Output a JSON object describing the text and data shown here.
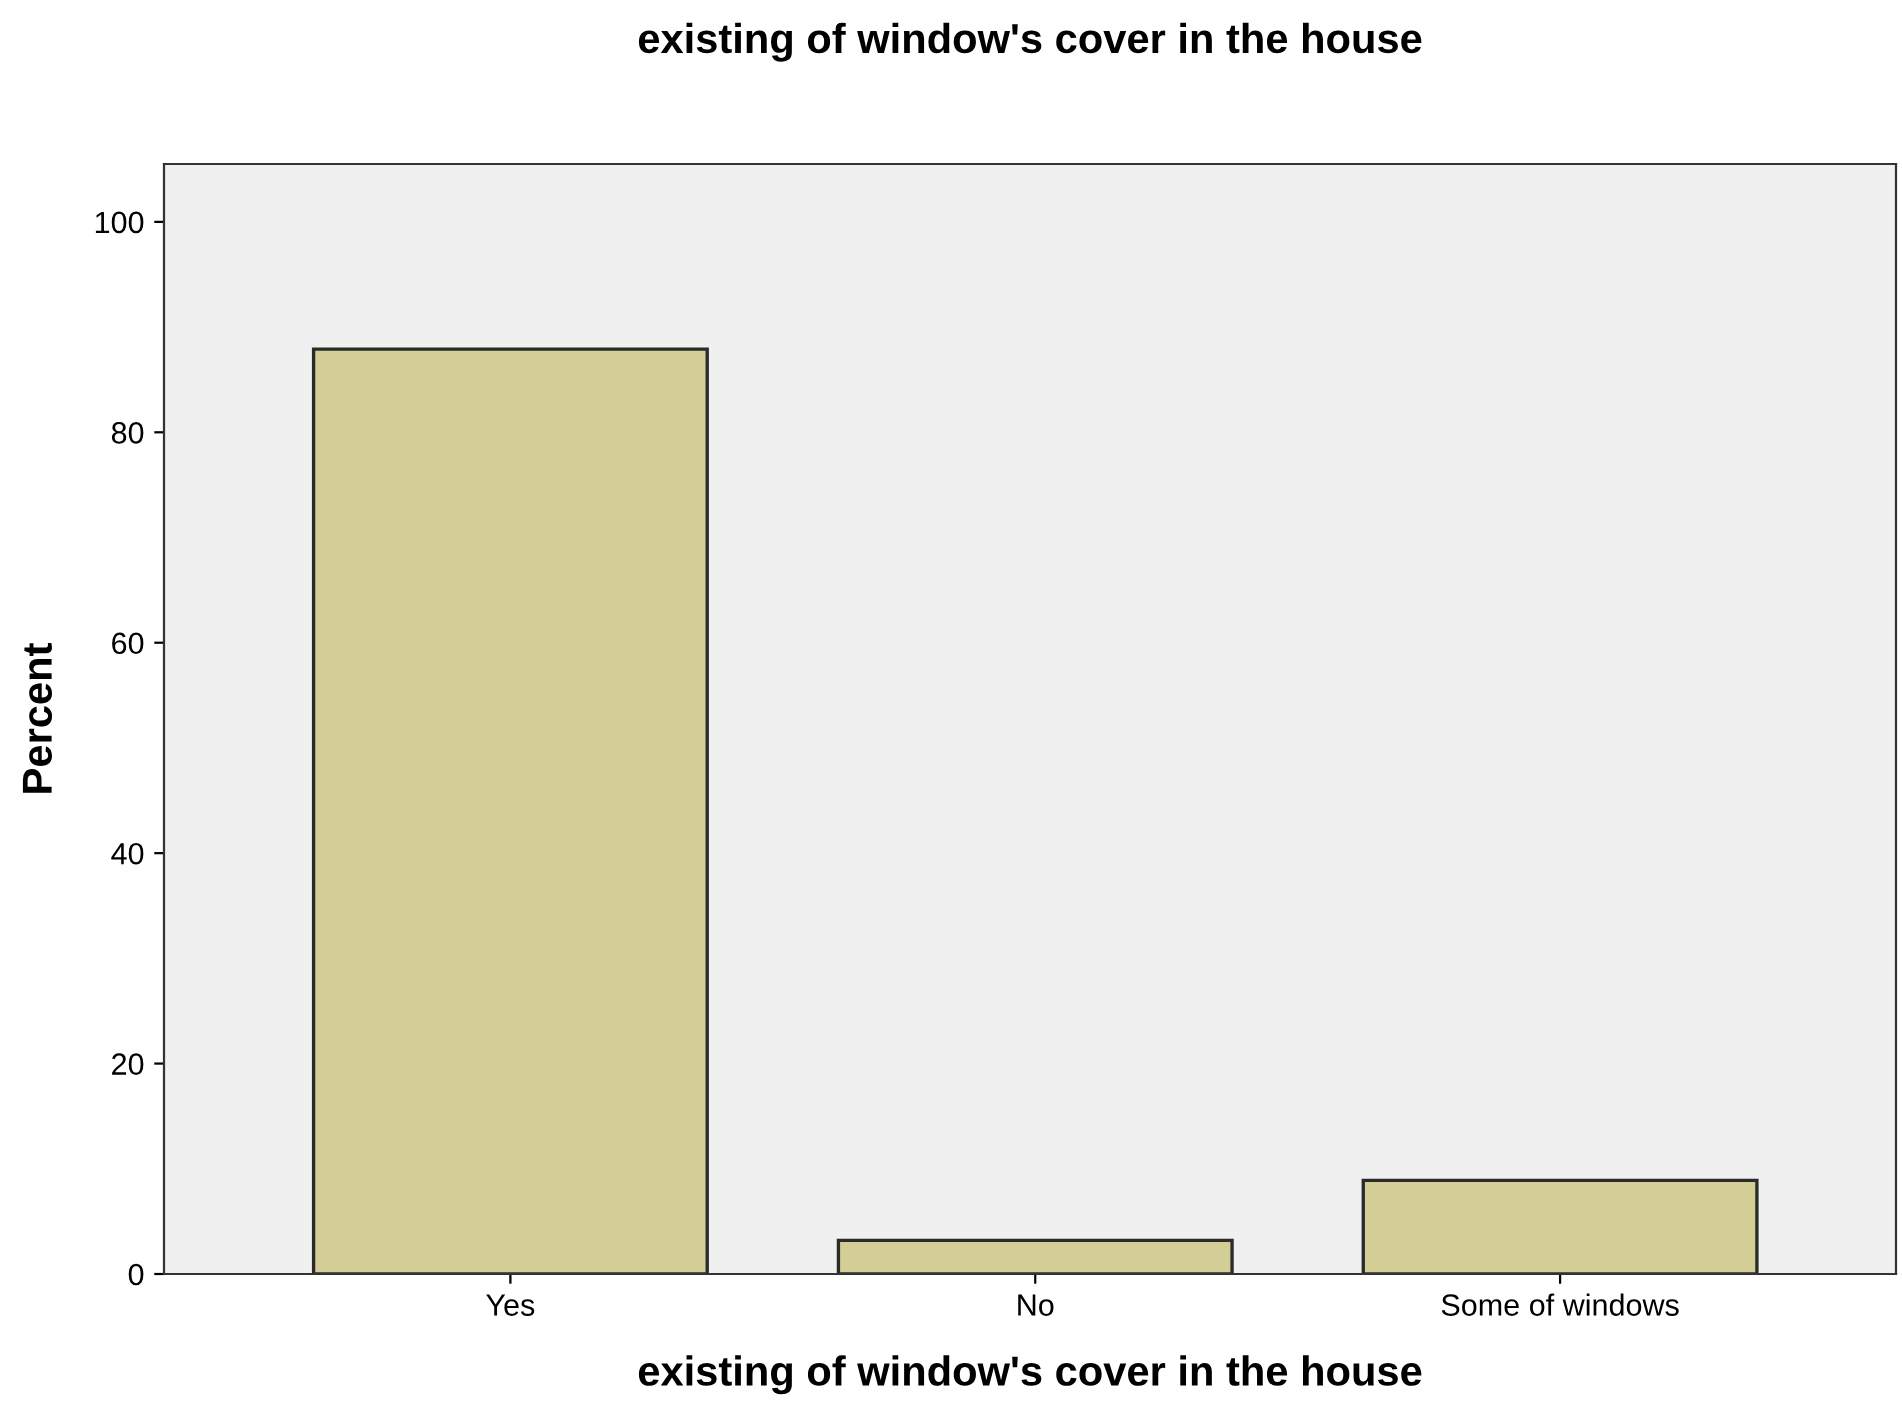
{
  "chart_data": {
    "type": "bar",
    "title": "existing of window's cover in the house",
    "xlabel": "existing of window's cover in the house",
    "ylabel": "Percent",
    "categories": [
      "Yes",
      "No",
      "Some of windows"
    ],
    "values": [
      87.9,
      3.2,
      8.9
    ],
    "color": "#d3cd96",
    "ylim": [
      0,
      105.5
    ],
    "yticks": [
      0,
      20,
      40,
      60,
      80,
      100
    ],
    "grid": false,
    "legend": false
  }
}
